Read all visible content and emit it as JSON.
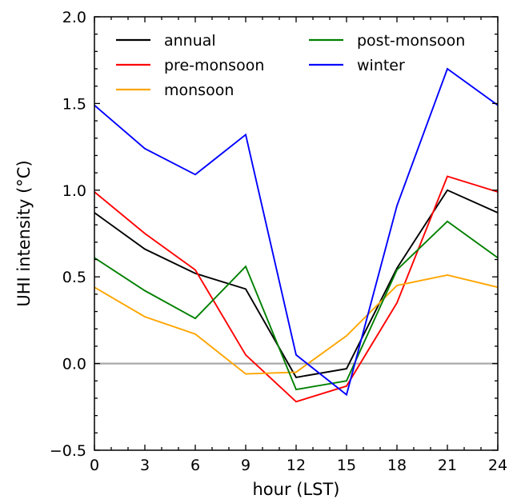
{
  "chart_data": {
    "type": "line",
    "xlabel": "hour (LST)",
    "ylabel": "UHI intensity (°C)",
    "xlim": [
      0,
      24
    ],
    "ylim": [
      -0.5,
      2.0
    ],
    "x_ticks": [
      0,
      3,
      6,
      9,
      12,
      15,
      18,
      21,
      24
    ],
    "x_tick_labels": [
      "0",
      "3",
      "6",
      "9",
      "12",
      "15",
      "18",
      "21",
      "24"
    ],
    "y_ticks": [
      -0.5,
      0.0,
      0.5,
      1.0,
      1.5,
      2.0
    ],
    "y_tick_labels": [
      "−0.5",
      "0.0",
      "0.5",
      "1.0",
      "1.5",
      "2.0"
    ],
    "zero_line": true,
    "grid": false,
    "legend_position": "top",
    "x": [
      0,
      3,
      6,
      9,
      12,
      15,
      18,
      21,
      24
    ],
    "series": [
      {
        "name": "annual",
        "color": "#000000",
        "values": [
          0.87,
          0.66,
          0.52,
          0.43,
          -0.08,
          -0.03,
          0.55,
          1.0,
          0.87
        ]
      },
      {
        "name": "pre-monsoon",
        "color": "#ff0000",
        "values": [
          0.99,
          0.75,
          0.54,
          0.05,
          -0.22,
          -0.13,
          0.35,
          1.08,
          0.99
        ]
      },
      {
        "name": "monsoon",
        "color": "#ffa500",
        "values": [
          0.44,
          0.27,
          0.17,
          -0.06,
          -0.05,
          0.16,
          0.45,
          0.51,
          0.44
        ]
      },
      {
        "name": "post-monsoon",
        "color": "#008000",
        "values": [
          0.61,
          0.42,
          0.26,
          0.56,
          -0.15,
          -0.1,
          0.54,
          0.82,
          0.61
        ]
      },
      {
        "name": "winter",
        "color": "#0000ff",
        "values": [
          1.49,
          1.24,
          1.09,
          1.32,
          0.05,
          -0.18,
          0.91,
          1.7,
          1.49
        ]
      }
    ]
  }
}
